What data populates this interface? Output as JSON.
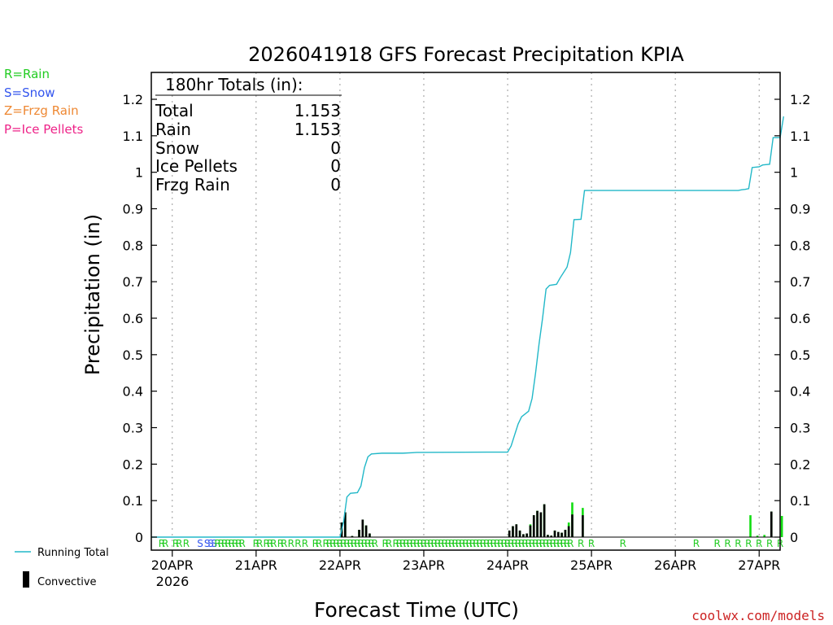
{
  "chart_data": {
    "type": "bar+line",
    "title": "2026041918 GFS Forecast Precipitation KPIA",
    "xlabel": "Forecast Time (UTC)",
    "ylabel": "Precipitation (in)",
    "ylim": [
      0,
      1.25
    ],
    "yticks": [
      0,
      0.1,
      0.2,
      0.3,
      0.4,
      0.5,
      0.6,
      0.7,
      0.8,
      0.9,
      1,
      1.1,
      1.2
    ],
    "ytick_labels": [
      "0",
      "0.1",
      "0.2",
      "0.3",
      "0.4",
      "0.5",
      "0.6",
      "0.7",
      "0.8",
      "0.9",
      "1",
      "1.1",
      "1.2"
    ],
    "xlim_hours": [
      -6,
      174
    ],
    "x_units": "forecast hours from 2026-04-20 00Z",
    "xticks_hours": [
      0,
      24,
      48,
      72,
      96,
      120,
      144,
      168
    ],
    "xtick_labels": [
      "20APR",
      "21APR",
      "22APR",
      "23APR",
      "24APR",
      "25APR",
      "26APR",
      "27APR"
    ],
    "year_label": "2026",
    "grid": "vertical dotted at each day",
    "legend_left": [
      {
        "label": "R=Rain",
        "color": "#22cc22"
      },
      {
        "label": "S=Snow",
        "color": "#3355ee"
      },
      {
        "label": "Z=Frzg Rain",
        "color": "#ee8833"
      },
      {
        "label": "P=Ice Pellets",
        "color": "#ee2288"
      }
    ],
    "legend_bottom": [
      {
        "label": "Running Total",
        "color": "#22b8c8"
      },
      {
        "label": "Convective",
        "color": "#000000"
      }
    ],
    "totals_box": {
      "header": "180hr Totals (in):",
      "rows": [
        {
          "label": "Total",
          "value": "1.153"
        },
        {
          "label": "Rain",
          "value": "1.153"
        },
        {
          "label": "Snow",
          "value": "0"
        },
        {
          "label": "Ice Pellets",
          "value": "0"
        },
        {
          "label": "Frzg Rain",
          "value": "0"
        }
      ]
    },
    "running_total": {
      "name": "Running Total",
      "color": "#22b8c8",
      "points": [
        [
          -6,
          0
        ],
        [
          48,
          0
        ],
        [
          49,
          0.04
        ],
        [
          50,
          0.11
        ],
        [
          51,
          0.12
        ],
        [
          53,
          0.122
        ],
        [
          54,
          0.14
        ],
        [
          55,
          0.19
        ],
        [
          56,
          0.22
        ],
        [
          57,
          0.228
        ],
        [
          60,
          0.23
        ],
        [
          66,
          0.23
        ],
        [
          70,
          0.232
        ],
        [
          90,
          0.233
        ],
        [
          96,
          0.233
        ],
        [
          97,
          0.25
        ],
        [
          98,
          0.28
        ],
        [
          99,
          0.31
        ],
        [
          100,
          0.33
        ],
        [
          102,
          0.345
        ],
        [
          103,
          0.38
        ],
        [
          104,
          0.45
        ],
        [
          105,
          0.53
        ],
        [
          106,
          0.6
        ],
        [
          107,
          0.68
        ],
        [
          108,
          0.69
        ],
        [
          110,
          0.693
        ],
        [
          111,
          0.71
        ],
        [
          113,
          0.74
        ],
        [
          114,
          0.78
        ],
        [
          115,
          0.87
        ],
        [
          117,
          0.871
        ],
        [
          118,
          0.95
        ],
        [
          126,
          0.95
        ],
        [
          150,
          0.95
        ],
        [
          162,
          0.95
        ],
        [
          163,
          0.952
        ],
        [
          164,
          0.953
        ],
        [
          165,
          0.955
        ],
        [
          166,
          1.013
        ],
        [
          168,
          1.015
        ],
        [
          169,
          1.02
        ],
        [
          171,
          1.022
        ],
        [
          172,
          1.095
        ],
        [
          174,
          1.095
        ],
        [
          175,
          1.153
        ]
      ]
    },
    "bars": {
      "name": "6hr precipitation",
      "total_color": "#11dd11",
      "convective_color": "#000000",
      "data": [
        {
          "x": 48.5,
          "total": 0.04,
          "convective": 0.04
        },
        {
          "x": 49.5,
          "total": 0.068,
          "convective": 0.068
        },
        {
          "x": 51.5,
          "total": 0.003,
          "convective": 0.003
        },
        {
          "x": 53.5,
          "total": 0.02,
          "convective": 0.02
        },
        {
          "x": 54.5,
          "total": 0.048,
          "convective": 0.048
        },
        {
          "x": 55.5,
          "total": 0.032,
          "convective": 0.032
        },
        {
          "x": 56.5,
          "total": 0.01,
          "convective": 0.01
        },
        {
          "x": 96.5,
          "total": 0.018,
          "convective": 0.018
        },
        {
          "x": 97.5,
          "total": 0.03,
          "convective": 0.03
        },
        {
          "x": 98.5,
          "total": 0.035,
          "convective": 0.035
        },
        {
          "x": 99.5,
          "total": 0.018,
          "convective": 0.018
        },
        {
          "x": 100.5,
          "total": 0.008,
          "convective": 0.008
        },
        {
          "x": 101.5,
          "total": 0.01,
          "convective": 0.01
        },
        {
          "x": 102.5,
          "total": 0.035,
          "convective": 0.032
        },
        {
          "x": 103.5,
          "total": 0.06,
          "convective": 0.06
        },
        {
          "x": 104.5,
          "total": 0.072,
          "convective": 0.072
        },
        {
          "x": 105.5,
          "total": 0.068,
          "convective": 0.068
        },
        {
          "x": 106.5,
          "total": 0.09,
          "convective": 0.09
        },
        {
          "x": 107.5,
          "total": 0.006,
          "convective": 0.006
        },
        {
          "x": 108.5,
          "total": 0.004,
          "convective": 0.004
        },
        {
          "x": 109.5,
          "total": 0.018,
          "convective": 0.018
        },
        {
          "x": 110.5,
          "total": 0.014,
          "convective": 0.014
        },
        {
          "x": 111.5,
          "total": 0.012,
          "convective": 0.012
        },
        {
          "x": 112.5,
          "total": 0.02,
          "convective": 0.02
        },
        {
          "x": 113.5,
          "total": 0.04,
          "convective": 0.03
        },
        {
          "x": 114.5,
          "total": 0.095,
          "convective": 0.062
        },
        {
          "x": 117.5,
          "total": 0.08,
          "convective": 0.06
        },
        {
          "x": 165.5,
          "total": 0.06,
          "convective": 0.0
        },
        {
          "x": 167.5,
          "total": 0.004,
          "convective": 0.0
        },
        {
          "x": 169.5,
          "total": 0.006,
          "convective": 0.0
        },
        {
          "x": 171.5,
          "total": 0.07,
          "convective": 0.07
        },
        {
          "x": 174.5,
          "total": 0.058,
          "convective": 0.0
        }
      ]
    },
    "ptype_markers": {
      "color_rain": "#22cc22",
      "color_snow": "#3355ee",
      "markers": [
        {
          "x": -3,
          "t": "R"
        },
        {
          "x": -2,
          "t": "R"
        },
        {
          "x": 1,
          "t": "R"
        },
        {
          "x": 2,
          "t": "R"
        },
        {
          "x": 4,
          "t": "R"
        },
        {
          "x": 8,
          "t": "S"
        },
        {
          "x": 10,
          "t": "S"
        },
        {
          "x": 11,
          "t": "S"
        },
        {
          "x": 12,
          "t": "S"
        },
        {
          "x": 13,
          "t": "R"
        },
        {
          "x": 14,
          "t": "R"
        },
        {
          "x": 15,
          "t": "R"
        },
        {
          "x": 16,
          "t": "R"
        },
        {
          "x": 17,
          "t": "R"
        },
        {
          "x": 18,
          "t": "R"
        },
        {
          "x": 19,
          "t": "R"
        },
        {
          "x": 20,
          "t": "R"
        },
        {
          "x": 24,
          "t": "R"
        },
        {
          "x": 25,
          "t": "R"
        },
        {
          "x": 27,
          "t": "R"
        },
        {
          "x": 28,
          "t": "R"
        },
        {
          "x": 29,
          "t": "R"
        },
        {
          "x": 31,
          "t": "R"
        },
        {
          "x": 32,
          "t": "R"
        },
        {
          "x": 34,
          "t": "R"
        },
        {
          "x": 36,
          "t": "R"
        },
        {
          "x": 38,
          "t": "R"
        },
        {
          "x": 41,
          "t": "R"
        },
        {
          "x": 42,
          "t": "R"
        },
        {
          "x": 44,
          "t": "R"
        },
        {
          "x": 45,
          "t": "R"
        },
        {
          "x": 46,
          "t": "R"
        },
        {
          "x": 47,
          "t": "R"
        },
        {
          "x": 48,
          "t": "R"
        },
        {
          "x": 49,
          "t": "R"
        },
        {
          "x": 50,
          "t": "R"
        },
        {
          "x": 51,
          "t": "R"
        },
        {
          "x": 52,
          "t": "R"
        },
        {
          "x": 53,
          "t": "R"
        },
        {
          "x": 54,
          "t": "R"
        },
        {
          "x": 55,
          "t": "R"
        },
        {
          "x": 56,
          "t": "R"
        },
        {
          "x": 57,
          "t": "R"
        },
        {
          "x": 58,
          "t": "R"
        },
        {
          "x": 61,
          "t": "R"
        },
        {
          "x": 62,
          "t": "R"
        },
        {
          "x": 64,
          "t": "R"
        },
        {
          "x": 65,
          "t": "R"
        },
        {
          "x": 66,
          "t": "R"
        },
        {
          "x": 67,
          "t": "R"
        },
        {
          "x": 68,
          "t": "R"
        },
        {
          "x": 69,
          "t": "R"
        },
        {
          "x": 70,
          "t": "R"
        },
        {
          "x": 71,
          "t": "R"
        },
        {
          "x": 72,
          "t": "R"
        },
        {
          "x": 73,
          "t": "R"
        },
        {
          "x": 74,
          "t": "R"
        },
        {
          "x": 75,
          "t": "R"
        },
        {
          "x": 76,
          "t": "R"
        },
        {
          "x": 77,
          "t": "R"
        },
        {
          "x": 78,
          "t": "R"
        },
        {
          "x": 79,
          "t": "R"
        },
        {
          "x": 80,
          "t": "R"
        },
        {
          "x": 81,
          "t": "R"
        },
        {
          "x": 82,
          "t": "R"
        },
        {
          "x": 83,
          "t": "R"
        },
        {
          "x": 84,
          "t": "R"
        },
        {
          "x": 85,
          "t": "R"
        },
        {
          "x": 86,
          "t": "R"
        },
        {
          "x": 87,
          "t": "R"
        },
        {
          "x": 88,
          "t": "R"
        },
        {
          "x": 89,
          "t": "R"
        },
        {
          "x": 90,
          "t": "R"
        },
        {
          "x": 91,
          "t": "R"
        },
        {
          "x": 92,
          "t": "R"
        },
        {
          "x": 93,
          "t": "R"
        },
        {
          "x": 94,
          "t": "R"
        },
        {
          "x": 95,
          "t": "R"
        },
        {
          "x": 96,
          "t": "R"
        },
        {
          "x": 97,
          "t": "R"
        },
        {
          "x": 98,
          "t": "R"
        },
        {
          "x": 99,
          "t": "R"
        },
        {
          "x": 100,
          "t": "R"
        },
        {
          "x": 101,
          "t": "R"
        },
        {
          "x": 102,
          "t": "R"
        },
        {
          "x": 103,
          "t": "R"
        },
        {
          "x": 104,
          "t": "R"
        },
        {
          "x": 105,
          "t": "R"
        },
        {
          "x": 106,
          "t": "R"
        },
        {
          "x": 107,
          "t": "R"
        },
        {
          "x": 108,
          "t": "R"
        },
        {
          "x": 109,
          "t": "R"
        },
        {
          "x": 110,
          "t": "R"
        },
        {
          "x": 111,
          "t": "R"
        },
        {
          "x": 112,
          "t": "R"
        },
        {
          "x": 113,
          "t": "R"
        },
        {
          "x": 114,
          "t": "R"
        },
        {
          "x": 117,
          "t": "R"
        },
        {
          "x": 120,
          "t": "R"
        },
        {
          "x": 129,
          "t": "R"
        },
        {
          "x": 150,
          "t": "R"
        },
        {
          "x": 156,
          "t": "R"
        },
        {
          "x": 159,
          "t": "R"
        },
        {
          "x": 162,
          "t": "R"
        },
        {
          "x": 165,
          "t": "R"
        },
        {
          "x": 168,
          "t": "R"
        },
        {
          "x": 171,
          "t": "R"
        },
        {
          "x": 174,
          "t": "R"
        }
      ]
    }
  },
  "footer": {
    "credit": "coolwx.com/models",
    "credit_color": "#cc2222"
  }
}
